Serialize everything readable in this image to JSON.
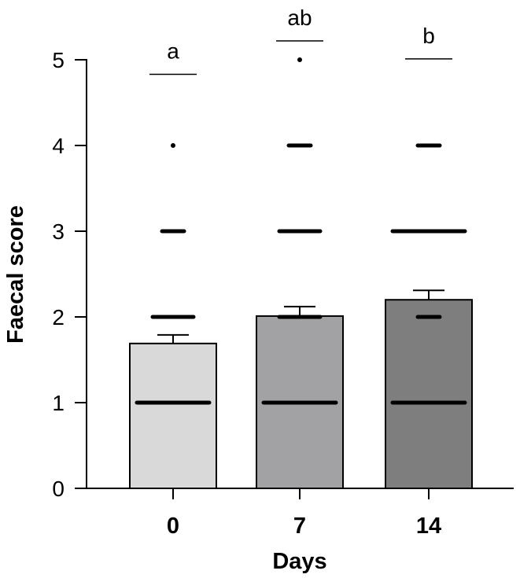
{
  "chart_data": {
    "type": "bar",
    "categories": [
      "0",
      "7",
      "14"
    ],
    "xlabel": "Days",
    "ylabel": "Faecal score",
    "ylim": [
      0,
      5
    ],
    "yticks": [
      0,
      1,
      2,
      3,
      4,
      5
    ],
    "grid": false,
    "legend": "none",
    "bars": [
      {
        "category": "0",
        "mean": 1.69,
        "error_upper": 1.79,
        "color": "#d9d9d9"
      },
      {
        "category": "7",
        "mean": 2.01,
        "error_upper": 2.12,
        "color": "#a2a2a5"
      },
      {
        "category": "14",
        "mean": 2.2,
        "error_upper": 2.31,
        "color": "#7e7e7e"
      }
    ],
    "significance": [
      {
        "category": "0",
        "letter": "a",
        "line_y": 4.83
      },
      {
        "category": "7",
        "letter": "ab",
        "line_y": 5.22
      },
      {
        "category": "14",
        "letter": "b",
        "line_y": 5.01
      }
    ],
    "individual_points": [
      {
        "category": "0",
        "score": 1,
        "density": "dense"
      },
      {
        "category": "0",
        "score": 2,
        "density": "medium"
      },
      {
        "category": "0",
        "score": 3,
        "density": "few"
      },
      {
        "category": "0",
        "score": 4,
        "density": "single"
      },
      {
        "category": "7",
        "score": 1,
        "density": "dense"
      },
      {
        "category": "7",
        "score": 2,
        "density": "medium"
      },
      {
        "category": "7",
        "score": 3,
        "density": "medium"
      },
      {
        "category": "7",
        "score": 4,
        "density": "few"
      },
      {
        "category": "7",
        "score": 5,
        "density": "single"
      },
      {
        "category": "14",
        "score": 1,
        "density": "dense"
      },
      {
        "category": "14",
        "score": 2,
        "density": "few"
      },
      {
        "category": "14",
        "score": 3,
        "density": "dense"
      },
      {
        "category": "14",
        "score": 4,
        "density": "few"
      }
    ],
    "colors": {
      "axis": "#000000",
      "points": "#000000"
    }
  }
}
